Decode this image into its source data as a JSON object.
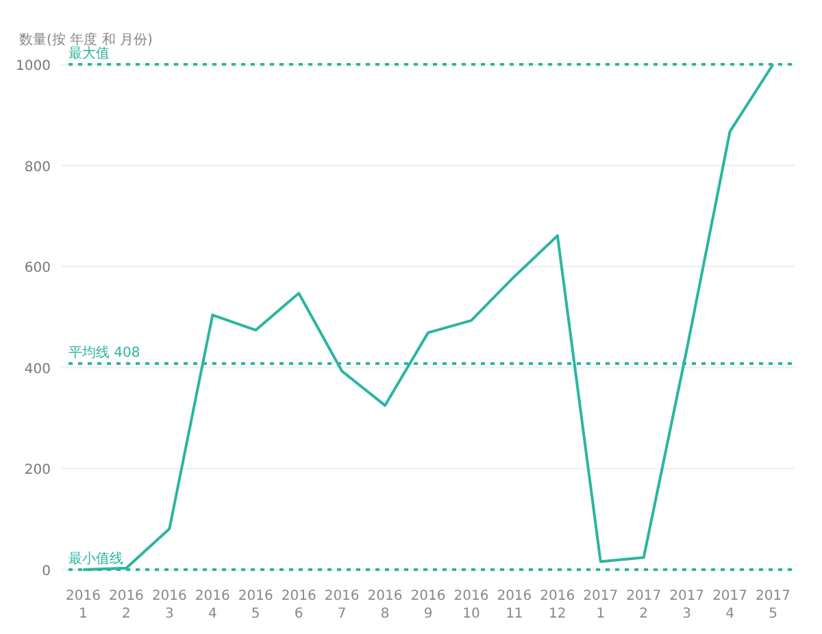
{
  "chart_data": {
    "type": "line",
    "ylabel": "数量(按 年度 和 月份)",
    "categories": [
      "2016 1",
      "2016 2",
      "2016 3",
      "2016 4",
      "2016 5",
      "2016 6",
      "2016 7",
      "2016 8",
      "2016 9",
      "2016 10",
      "2016 11",
      "2016 12",
      "2017 1",
      "2017 2",
      "2017 3",
      "2017 4",
      "2017 5"
    ],
    "series": [
      {
        "color": "#2bb5a0",
        "values": [
          0,
          3,
          81,
          504,
          474,
          547,
          393,
          325,
          469,
          493,
          580,
          661,
          16,
          24,
          436,
          867,
          1000
        ]
      }
    ],
    "ylim": [
      0,
      1000
    ],
    "yticks": [
      0,
      200,
      400,
      600,
      800,
      1000
    ],
    "grid": "y",
    "marker": "none",
    "line_style": "solid",
    "ref_lines": [
      {
        "axis": "y",
        "value": 1000,
        "label": "最大值",
        "color": "#2bb5a0",
        "line_style": "dotted"
      },
      {
        "axis": "y",
        "value": 408,
        "label": "平均线 408",
        "color": "#2bb5a0",
        "line_style": "dotted"
      },
      {
        "axis": "y",
        "value": 0,
        "label": "最小值线",
        "color": "#2bb5a0",
        "line_style": "dotted"
      }
    ]
  }
}
